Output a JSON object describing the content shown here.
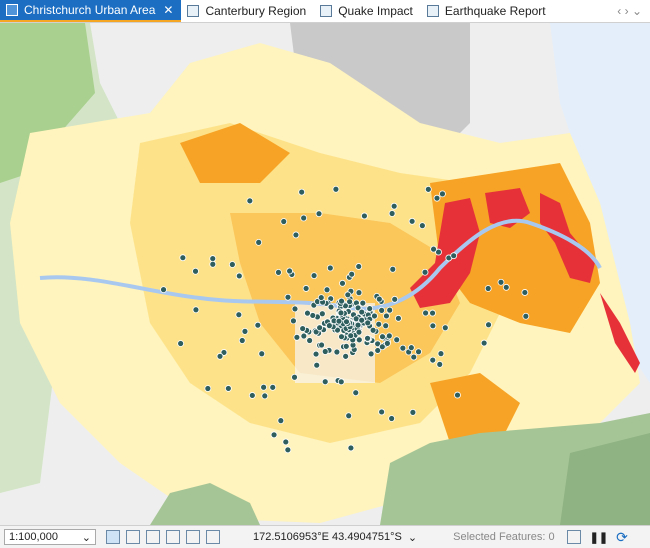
{
  "tabs": [
    "Christchurch Urban Area",
    "Canterbury Region",
    "Quake Impact",
    "Earthquake Report"
  ],
  "status_bar": {
    "scale": "1:100,000",
    "coordinates": "172.5106953°E 43.4904751°S",
    "selected_features": "Selected Features: 0"
  }
}
